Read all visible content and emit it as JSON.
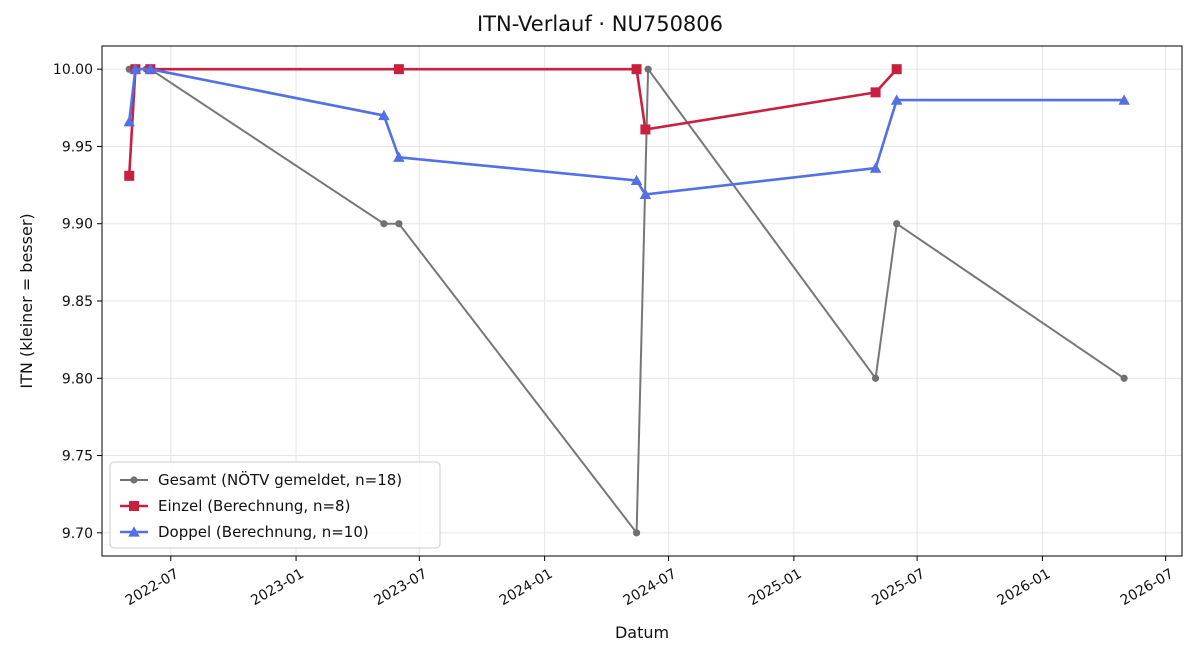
{
  "chart_data": {
    "type": "line",
    "title": "ITN-Verlauf · NU750806",
    "xlabel": "Datum",
    "ylabel": "ITN  (kleiner = besser)",
    "x_type": "date",
    "xlim": [
      "2022-03-22",
      "2026-07-25"
    ],
    "ylim": [
      9.685,
      10.015
    ],
    "x_ticks": [
      {
        "date": "2022-07-01",
        "label": "2022-07"
      },
      {
        "date": "2023-01-01",
        "label": "2023-01"
      },
      {
        "date": "2023-07-01",
        "label": "2023-07"
      },
      {
        "date": "2024-01-01",
        "label": "2024-01"
      },
      {
        "date": "2024-07-01",
        "label": "2024-07"
      },
      {
        "date": "2025-01-01",
        "label": "2025-01"
      },
      {
        "date": "2025-07-01",
        "label": "2025-07"
      },
      {
        "date": "2026-01-01",
        "label": "2026-01"
      },
      {
        "date": "2026-07-01",
        "label": "2026-07"
      }
    ],
    "y_ticks": [
      {
        "value": 9.7,
        "label": "9.70"
      },
      {
        "value": 9.75,
        "label": "9.75"
      },
      {
        "value": 9.8,
        "label": "9.80"
      },
      {
        "value": 9.85,
        "label": "9.85"
      },
      {
        "value": 9.9,
        "label": "9.90"
      },
      {
        "value": 9.95,
        "label": "9.95"
      },
      {
        "value": 10.0,
        "label": "10.00"
      }
    ],
    "grid": true,
    "legend_position": "lower-left",
    "series": [
      {
        "name": "Gesamt (NÖTV gemeldet, n=18)",
        "color": "#707070",
        "marker": "circle",
        "points": [
          {
            "x": "2022-05-01",
            "y": 10.0
          },
          {
            "x": "2022-05-05",
            "y": 10.0
          },
          {
            "x": "2022-05-08",
            "y": 10.0
          },
          {
            "x": "2022-05-12",
            "y": 10.0
          },
          {
            "x": "2022-05-26",
            "y": 10.0
          },
          {
            "x": "2022-06-01",
            "y": 10.0
          },
          {
            "x": "2023-05-10",
            "y": 9.9
          },
          {
            "x": "2023-06-01",
            "y": 9.9
          },
          {
            "x": "2024-05-15",
            "y": 9.7
          },
          {
            "x": "2024-06-01",
            "y": 10.0
          },
          {
            "x": "2025-05-01",
            "y": 9.8
          },
          {
            "x": "2025-06-01",
            "y": 9.9
          },
          {
            "x": "2026-05-01",
            "y": 9.8
          }
        ]
      },
      {
        "name": "Einzel (Berechnung, n=8)",
        "color": "#c8203e",
        "marker": "square",
        "points": [
          {
            "x": "2022-05-01",
            "y": 9.931
          },
          {
            "x": "2022-05-10",
            "y": 10.0
          },
          {
            "x": "2022-06-01",
            "y": 10.0
          },
          {
            "x": "2023-06-01",
            "y": 10.0
          },
          {
            "x": "2024-05-15",
            "y": 10.0
          },
          {
            "x": "2024-05-28",
            "y": 9.961
          },
          {
            "x": "2025-05-01",
            "y": 9.985
          },
          {
            "x": "2025-06-01",
            "y": 10.0
          }
        ]
      },
      {
        "name": "Doppel (Berechnung, n=10)",
        "color": "#5470e6",
        "marker": "triangle",
        "points": [
          {
            "x": "2022-05-01",
            "y": 9.966
          },
          {
            "x": "2022-05-10",
            "y": 10.0
          },
          {
            "x": "2022-06-01",
            "y": 10.0
          },
          {
            "x": "2023-05-10",
            "y": 9.97
          },
          {
            "x": "2023-06-01",
            "y": 9.943
          },
          {
            "x": "2024-05-15",
            "y": 9.928
          },
          {
            "x": "2024-05-28",
            "y": 9.919
          },
          {
            "x": "2025-05-01",
            "y": 9.936
          },
          {
            "x": "2025-06-01",
            "y": 9.98
          },
          {
            "x": "2026-05-01",
            "y": 9.98
          }
        ]
      }
    ]
  }
}
